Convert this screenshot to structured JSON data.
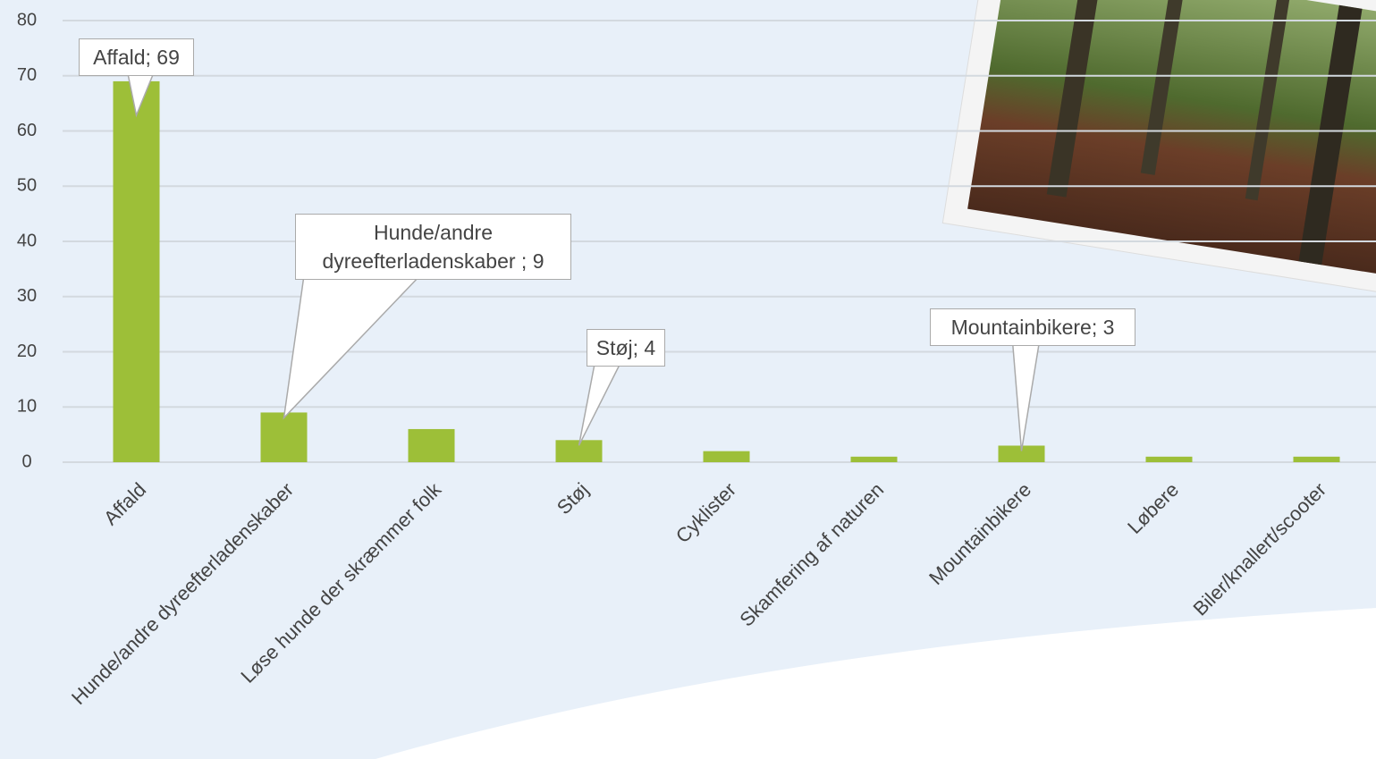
{
  "chart_data": {
    "type": "bar",
    "categories": [
      "Affald",
      "Hunde/andre dyreefterladenskaber",
      "Løse hunde der skræmmer folk",
      "Støj",
      "Cyklister",
      "Skamfering af naturen",
      "Mountainbikere",
      "Løbere",
      "Biler/knallert/scooter"
    ],
    "values": [
      69,
      9,
      6,
      4,
      2,
      1,
      3,
      1,
      1
    ],
    "value_labels": [
      "Affald; 69",
      "Hunde/andre dyreefterladenskaber ; 9",
      null,
      "Støj; 4",
      null,
      null,
      "Mountainbikere; 3",
      null,
      null
    ],
    "color": "#9dbf38",
    "ylim": [
      0,
      80
    ],
    "yticks": [
      0,
      10,
      20,
      30,
      40,
      50,
      60,
      70,
      80
    ],
    "grid": true
  }
}
